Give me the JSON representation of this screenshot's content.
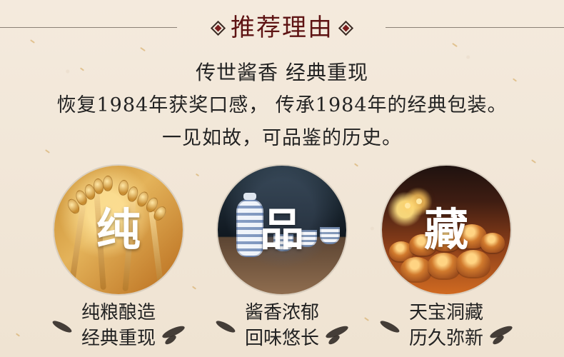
{
  "header": {
    "title": "推荐理由"
  },
  "intro": {
    "line1": "传世酱香 经典重现",
    "line2": "恢复1984年获奖口感， 传承1984年的经典包装。",
    "line3": "一见如故，可品鉴的历史。"
  },
  "features": [
    {
      "char": "纯",
      "caption_line1": "纯粮酿造",
      "caption_line2": "经典重现",
      "image_theme": "wheat"
    },
    {
      "char": "品",
      "caption_line1": "酱香浓郁",
      "caption_line2": "回味悠长",
      "image_theme": "porcelain-liquor-set"
    },
    {
      "char": "藏",
      "caption_line1": "天宝洞藏",
      "caption_line2": "历久弥新",
      "image_theme": "cellar-jars"
    }
  ],
  "colors": {
    "background": "#f1e6d6",
    "title": "#5e1313",
    "text": "#222222",
    "accent": "#7a1e1e"
  }
}
